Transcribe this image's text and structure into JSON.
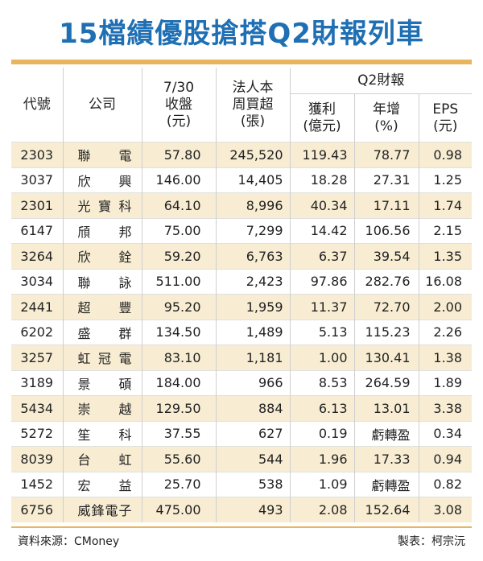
{
  "title": "15檔績優股搶搭Q2財報列車",
  "headers": {
    "code": "代號",
    "company": "公司",
    "price": [
      "7/30",
      "收盤",
      "(元)"
    ],
    "inst": [
      "法人本",
      "周買超",
      "(張)"
    ],
    "q2": "Q2財報",
    "profit": [
      "獲利",
      "(億元)"
    ],
    "yoy": [
      "年增",
      "(%)"
    ],
    "eps": [
      "EPS",
      "(元)"
    ]
  },
  "rows": [
    {
      "code": "2303",
      "name": "聯電",
      "price": "57.80",
      "inst": "245,520",
      "profit": "119.43",
      "yoy": "78.77",
      "eps": "0.98"
    },
    {
      "code": "3037",
      "name": "欣興",
      "price": "146.00",
      "inst": "14,405",
      "profit": "18.28",
      "yoy": "27.31",
      "eps": "1.25"
    },
    {
      "code": "2301",
      "name": "光寶科",
      "price": "64.10",
      "inst": "8,996",
      "profit": "40.34",
      "yoy": "17.11",
      "eps": "1.74"
    },
    {
      "code": "6147",
      "name": "頎邦",
      "price": "75.00",
      "inst": "7,299",
      "profit": "14.42",
      "yoy": "106.56",
      "eps": "2.15"
    },
    {
      "code": "3264",
      "name": "欣銓",
      "price": "59.20",
      "inst": "6,763",
      "profit": "6.37",
      "yoy": "39.54",
      "eps": "1.35"
    },
    {
      "code": "3034",
      "name": "聯詠",
      "price": "511.00",
      "inst": "2,423",
      "profit": "97.86",
      "yoy": "282.76",
      "eps": "16.08"
    },
    {
      "code": "2441",
      "name": "超豐",
      "price": "95.20",
      "inst": "1,959",
      "profit": "11.37",
      "yoy": "72.70",
      "eps": "2.00"
    },
    {
      "code": "6202",
      "name": "盛群",
      "price": "134.50",
      "inst": "1,489",
      "profit": "5.13",
      "yoy": "115.23",
      "eps": "2.26"
    },
    {
      "code": "3257",
      "name": "虹冠電",
      "price": "83.10",
      "inst": "1,181",
      "profit": "1.00",
      "yoy": "130.41",
      "eps": "1.38"
    },
    {
      "code": "3189",
      "name": "景碩",
      "price": "184.00",
      "inst": "966",
      "profit": "8.53",
      "yoy": "264.59",
      "eps": "1.89"
    },
    {
      "code": "5434",
      "name": "崇越",
      "price": "129.50",
      "inst": "884",
      "profit": "6.13",
      "yoy": "13.01",
      "eps": "3.38"
    },
    {
      "code": "5272",
      "name": "笙科",
      "price": "37.55",
      "inst": "627",
      "profit": "0.19",
      "yoy": "虧轉盈",
      "eps": "0.34"
    },
    {
      "code": "8039",
      "name": "台虹",
      "price": "55.60",
      "inst": "544",
      "profit": "1.96",
      "yoy": "17.33",
      "eps": "0.94"
    },
    {
      "code": "1452",
      "name": "宏益",
      "price": "25.70",
      "inst": "538",
      "profit": "1.09",
      "yoy": "虧轉盈",
      "eps": "0.82"
    },
    {
      "code": "6756",
      "name": "威鋒電子",
      "price": "475.00",
      "inst": "493",
      "profit": "2.08",
      "yoy": "152.64",
      "eps": "3.08"
    }
  ],
  "source": "資料來源：CMoney",
  "credit": "製表：柯宗沅",
  "colors": {
    "title": "#1f6fb4",
    "accent": "#e8b55c",
    "stripe": "#f8edd3"
  }
}
